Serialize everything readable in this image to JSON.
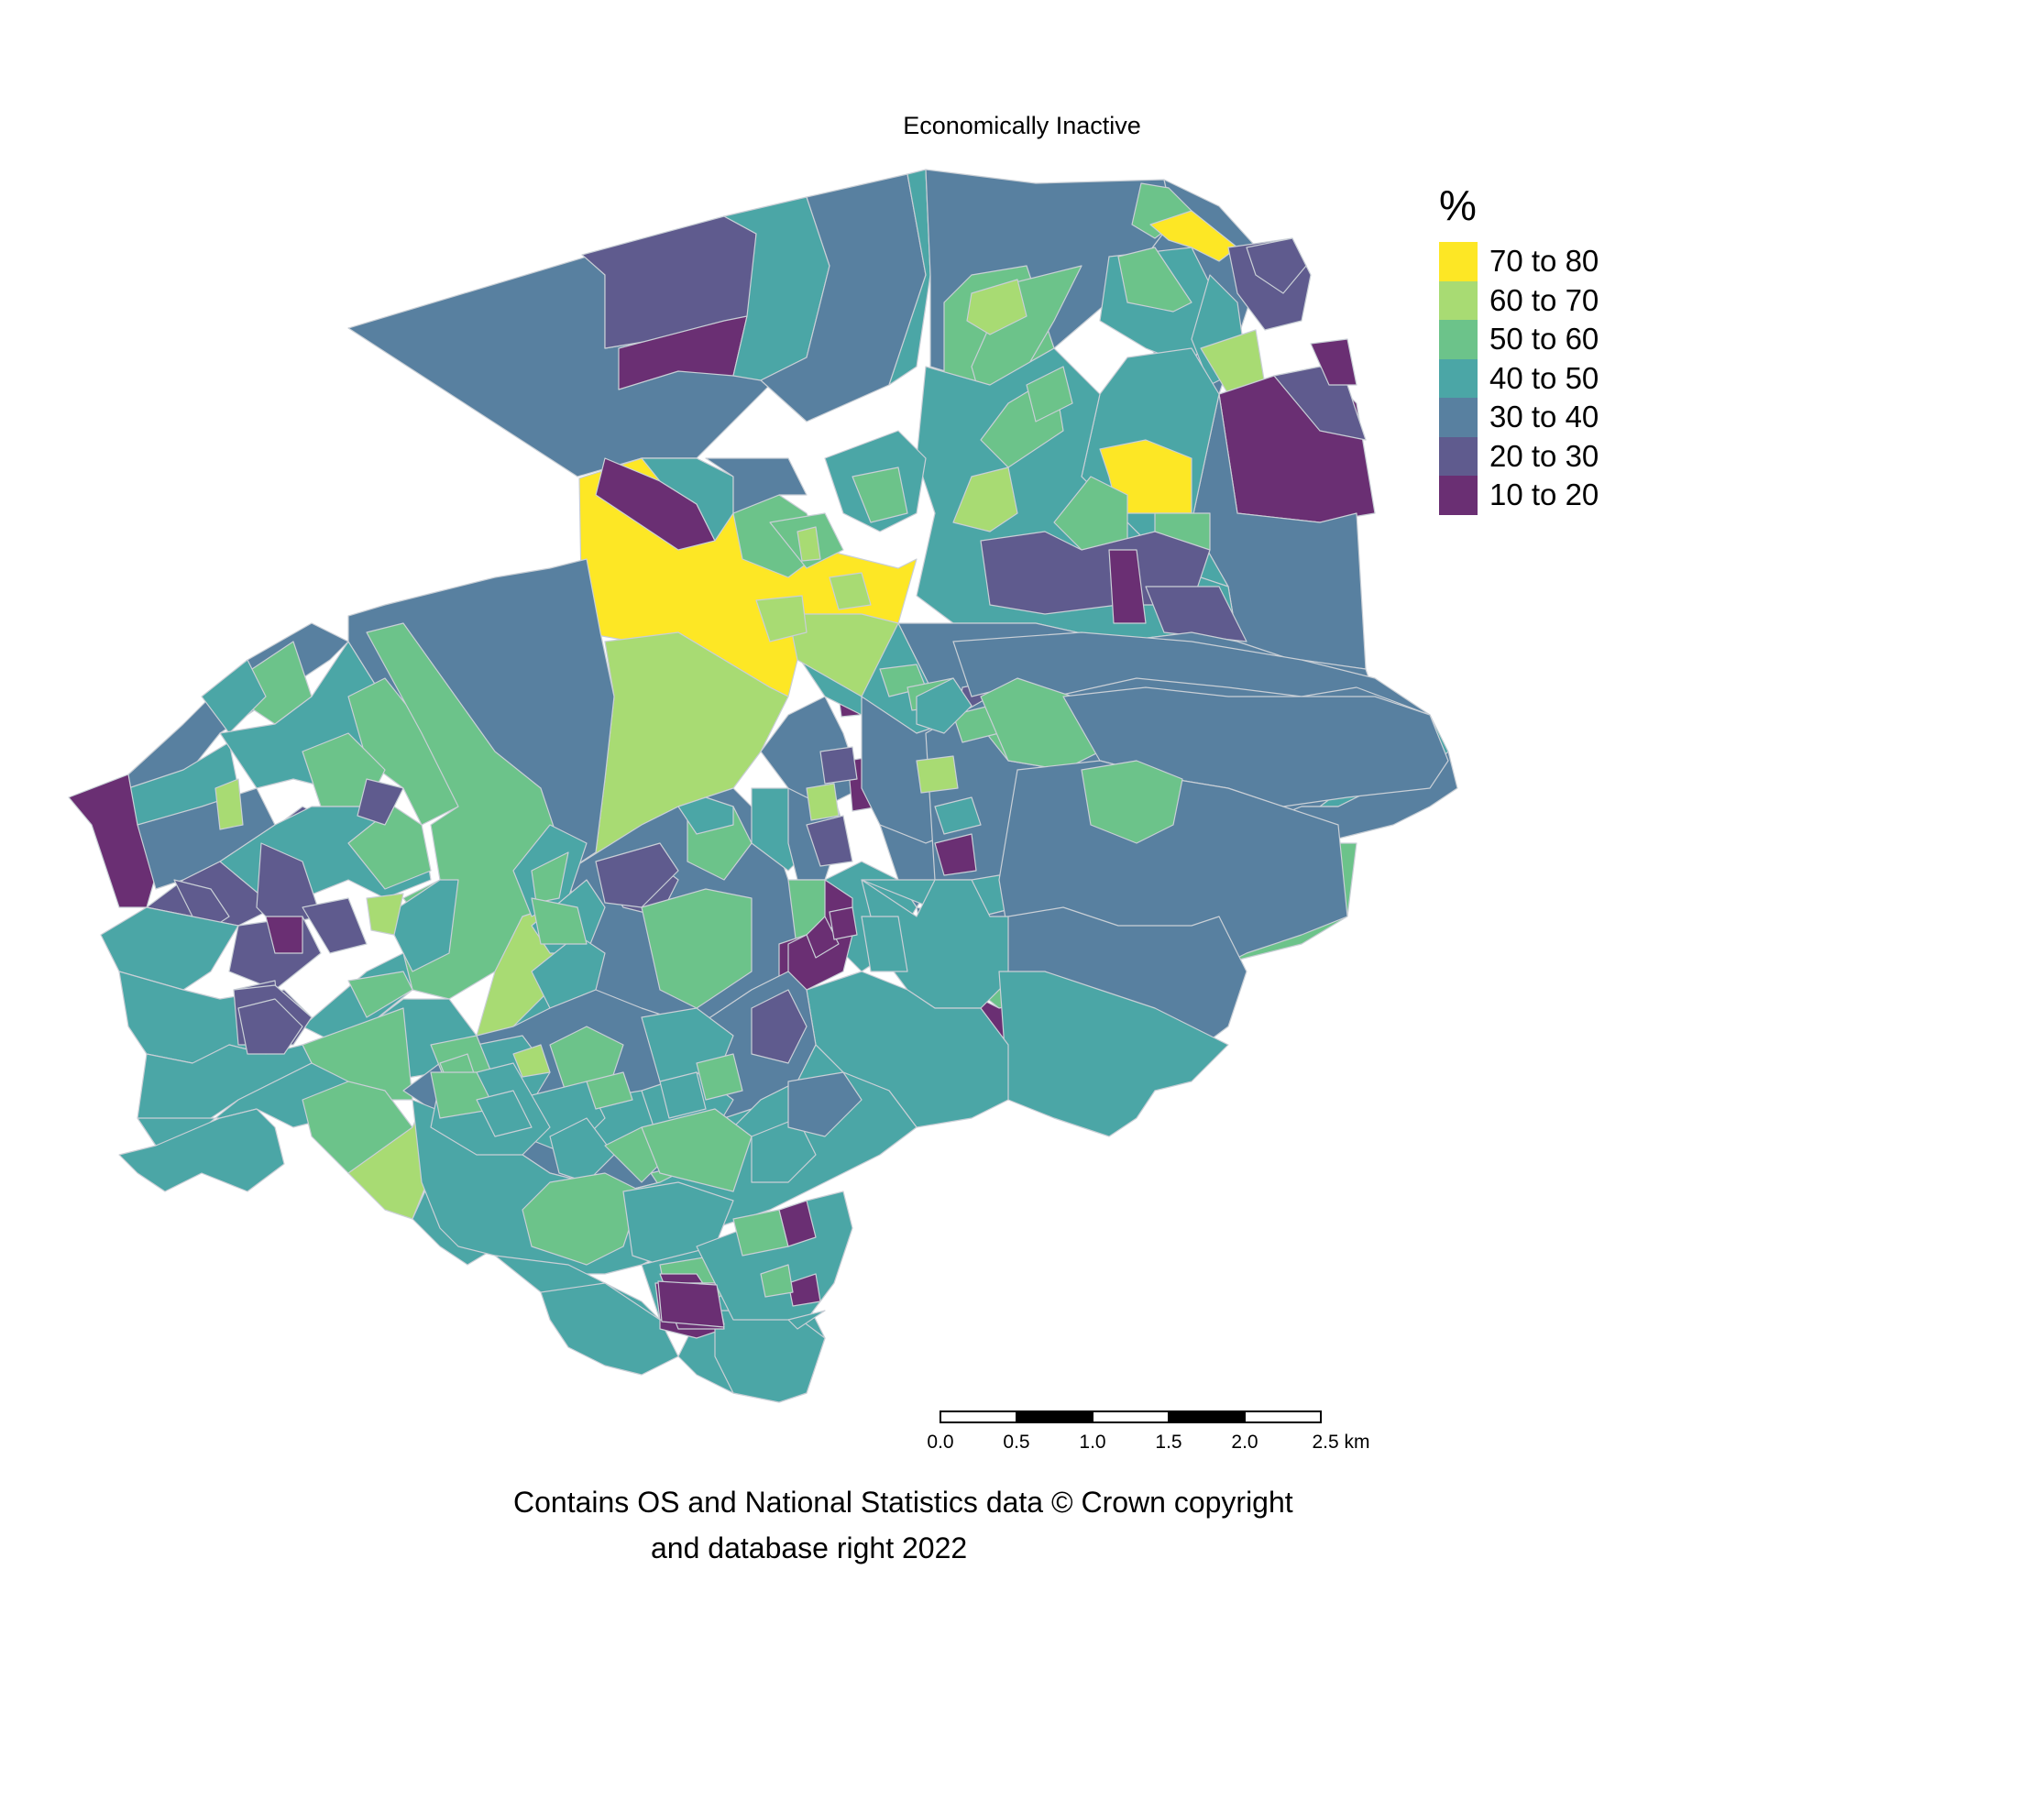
{
  "title": "Economically Inactive",
  "legend": {
    "title": "%",
    "items": [
      {
        "label": "70 to 80",
        "color": "#fde725"
      },
      {
        "label": "60 to 70",
        "color": "#a8db73"
      },
      {
        "label": "50 to 60",
        "color": "#6cc38a"
      },
      {
        "label": "40 to 50",
        "color": "#4ba6a6"
      },
      {
        "label": "30 to 40",
        "color": "#5880a0"
      },
      {
        "label": "20 to 30",
        "color": "#5f5b8e"
      },
      {
        "label": "10 to 20",
        "color": "#6a2f73"
      }
    ]
  },
  "scale_bar": {
    "ticks": [
      "0.0",
      "0.5",
      "1.0",
      "1.5",
      "2.0",
      "2.5"
    ],
    "unit": "km"
  },
  "attribution": {
    "line1": "Contains OS and National Statistics data © Crown copyright",
    "line2": "and database right 2022"
  },
  "map": {
    "type": "choropleth",
    "classes": [
      "70 to 80",
      "60 to 70",
      "50 to 60",
      "40 to 50",
      "30 to 40",
      "20 to 30",
      "10 to 20"
    ]
  }
}
